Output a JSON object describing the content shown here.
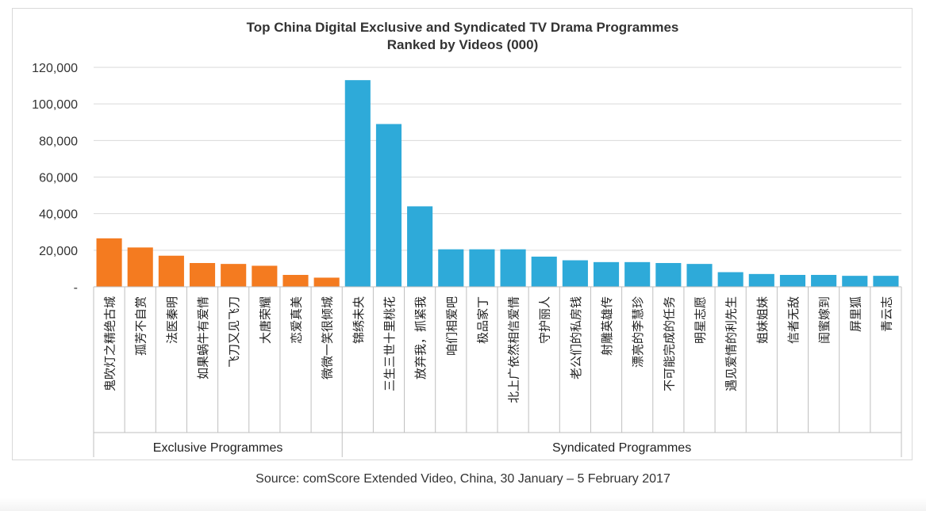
{
  "chart_data": {
    "type": "bar",
    "title": "Top China Digital Exclusive and Syndicated TV Drama Programmes",
    "subtitle": "Ranked by Videos (000)",
    "ylim": [
      0,
      120000
    ],
    "yticks": [
      {
        "value": 0,
        "label": "-"
      },
      {
        "value": 20000,
        "label": "20,000"
      },
      {
        "value": 40000,
        "label": "40,000"
      },
      {
        "value": 60000,
        "label": "60,000"
      },
      {
        "value": 80000,
        "label": "80,000"
      },
      {
        "value": 100000,
        "label": "100,000"
      },
      {
        "value": 120000,
        "label": "120,000"
      }
    ],
    "grid": true,
    "groups": [
      {
        "name": "Exclusive Programmes",
        "color": "#F47B20",
        "categories": [
          "鬼吹灯之精绝古城",
          "孤芳不自赏",
          "法医秦明",
          "如果蜗牛有爱情",
          "飞刀又见飞刀",
          "大唐荣耀",
          "恋爱真美",
          "微微一笑很倾城"
        ],
        "values": [
          26500,
          21500,
          17000,
          13000,
          12500,
          11500,
          6500,
          5000
        ]
      },
      {
        "name": "Syndicated Programmes",
        "color": "#2EAAD9",
        "categories": [
          "锦绣未央",
          "三生三世十里桃花",
          "放弃我，抓紧我",
          "咱们相爱吧",
          "极品家丁",
          "北上广依然相信爱情",
          "守护丽人",
          "老公们的私房钱",
          "射雕英雄传",
          "漂亮的李慧珍",
          "不可能完成的任务",
          "明星志愿",
          "遇见爱情的利先生",
          "姐妹姐妹",
          "信者无敌",
          "闺蜜嫁到",
          "屏里狐",
          "青云志"
        ],
        "values": [
          113000,
          89000,
          44000,
          20500,
          20500,
          20500,
          16500,
          14500,
          13500,
          13500,
          13000,
          12500,
          8000,
          7000,
          6500,
          6500,
          6000,
          6000
        ]
      }
    ]
  },
  "source": "Source: comScore Extended Video, China, 30 January – 5 February 2017"
}
